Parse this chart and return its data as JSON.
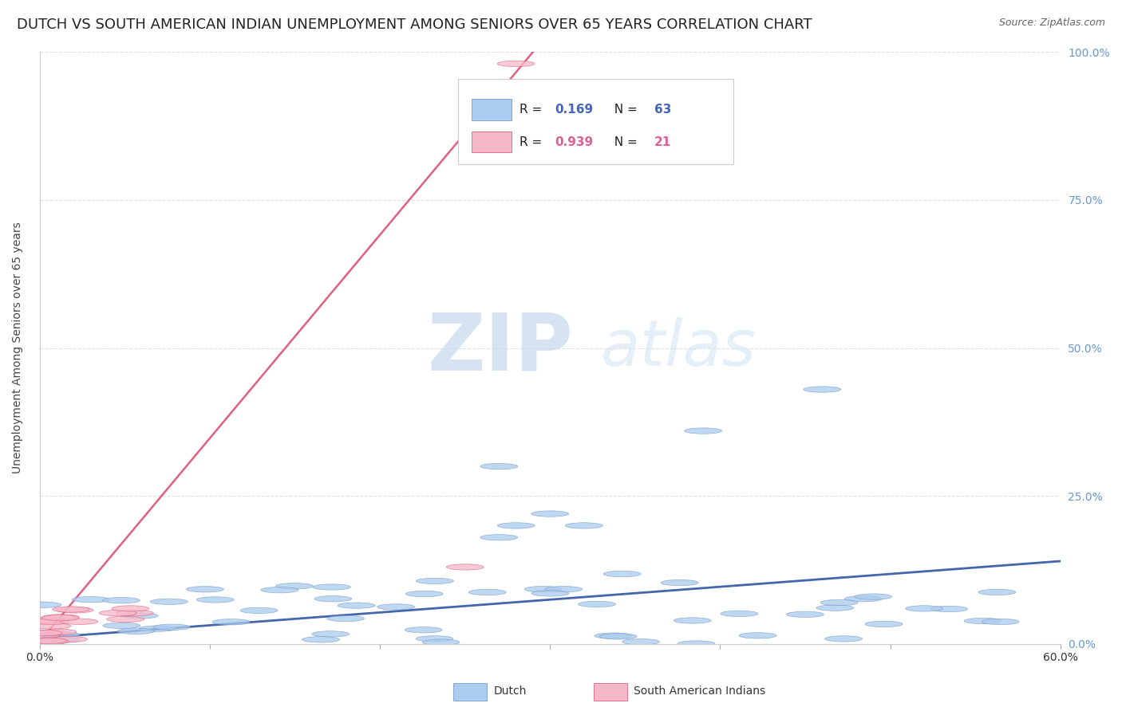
{
  "title": "DUTCH VS SOUTH AMERICAN INDIAN UNEMPLOYMENT AMONG SENIORS OVER 65 YEARS CORRELATION CHART",
  "source": "Source: ZipAtlas.com",
  "ylabel_label": "Unemployment Among Seniors over 65 years",
  "xlim": [
    0.0,
    0.6
  ],
  "ylim": [
    0.0,
    1.0
  ],
  "watermark_zip": "ZIP",
  "watermark_atlas": "atlas",
  "dutch_color": "#aaccee",
  "dutch_edge": "#7799cc",
  "sam_color": "#f5b8c8",
  "sam_edge": "#e06080",
  "dutch_line_color": "#4466aa",
  "sam_line_color": "#e06080",
  "bg_color": "#ffffff",
  "grid_color": "#dddddd",
  "right_tick_color": "#6699cc",
  "title_fontsize": 13,
  "axis_label_fontsize": 10,
  "tick_fontsize": 10,
  "watermark_color_zip": "#c8d8ee",
  "watermark_color_atlas": "#d8e8f5"
}
